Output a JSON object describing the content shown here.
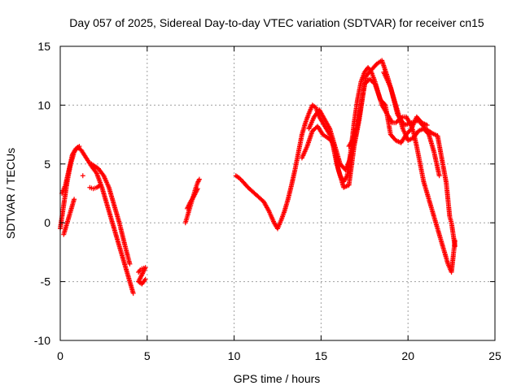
{
  "chart_data": {
    "type": "scatter",
    "title": "Day 057 of 2025, Sidereal Day-to-day VTEC variation (SDTVAR) for receiver cn15",
    "xlabel": "GPS time / hours",
    "ylabel": "SDTVAR / TECUs",
    "xlim": [
      0,
      25
    ],
    "ylim": [
      -10,
      15
    ],
    "xticks": [
      0,
      5,
      10,
      15,
      20,
      25
    ],
    "yticks": [
      -10,
      -5,
      0,
      5,
      10,
      15
    ],
    "grid": true,
    "marker": "+",
    "color": "#ff0000",
    "segments": [
      {
        "name": "segment-1",
        "x": [
          0.0,
          0.2,
          0.4,
          0.6,
          0.8,
          1.0,
          1.2,
          1.5,
          1.8,
          2.1,
          2.4,
          2.7,
          3.0,
          3.3,
          3.6,
          3.9,
          4.2
        ],
        "y": [
          -0.5,
          1.5,
          3.5,
          5.0,
          6.0,
          6.4,
          6.2,
          5.5,
          4.8,
          4.2,
          3.0,
          1.5,
          0.0,
          -1.5,
          -3.0,
          -4.5,
          -6.0
        ]
      },
      {
        "name": "segment-1-upper",
        "x": [
          0.1,
          0.3,
          0.5,
          0.7,
          0.9,
          1.1
        ],
        "y": [
          2.5,
          3.2,
          4.5,
          5.8,
          6.3,
          6.5
        ]
      },
      {
        "name": "segment-1-lower",
        "x": [
          0.2,
          0.4,
          0.6,
          0.8
        ],
        "y": [
          -1.0,
          0.0,
          1.0,
          2.0
        ]
      },
      {
        "name": "segment-1-band2",
        "x": [
          1.8,
          2.0,
          2.2,
          2.5,
          2.8,
          3.1,
          3.4,
          3.7,
          4.0
        ],
        "y": [
          5.0,
          4.8,
          4.6,
          4.0,
          3.0,
          1.5,
          0.0,
          -1.8,
          -3.5
        ]
      },
      {
        "name": "segment-1-band3",
        "x": [
          1.7,
          1.9,
          2.1,
          2.3
        ],
        "y": [
          3.0,
          2.9,
          3.0,
          3.2
        ]
      },
      {
        "name": "segment-1-tail",
        "x": [
          4.5,
          4.6,
          4.7,
          4.9,
          4.5,
          4.7,
          4.9,
          1.3
        ],
        "y": [
          -4.2,
          -4.0,
          -3.9,
          -3.8,
          -5.0,
          -5.2,
          -4.8,
          4.0
        ]
      },
      {
        "name": "segment-2",
        "x": [
          7.2,
          7.3,
          7.4,
          7.5,
          7.6,
          7.7,
          7.8,
          7.9,
          8.0
        ],
        "y": [
          0.0,
          0.5,
          1.0,
          1.5,
          2.0,
          2.5,
          3.0,
          3.4,
          3.7
        ]
      },
      {
        "name": "segment-2-band",
        "x": [
          7.3,
          7.5,
          7.7,
          7.9
        ],
        "y": [
          1.2,
          1.8,
          2.3,
          2.9
        ]
      },
      {
        "name": "segment-3",
        "x": [
          10.1,
          10.3,
          10.5,
          10.8,
          11.1,
          11.4,
          11.7,
          12.0,
          12.3,
          12.5,
          12.7,
          12.9,
          13.1,
          13.3,
          13.5,
          13.7,
          13.9,
          14.1,
          14.3,
          14.5,
          14.7,
          14.9,
          15.1,
          15.3,
          15.5,
          15.7,
          15.9,
          16.1,
          16.3,
          16.5,
          16.7,
          16.9,
          17.1,
          17.3,
          17.5,
          17.7,
          17.9,
          18.1,
          18.3,
          18.5,
          18.7,
          18.9,
          19.1,
          19.3,
          19.5,
          19.7,
          19.9,
          20.1,
          20.3,
          20.5,
          20.7,
          20.9,
          21.1,
          21.3,
          21.5,
          21.7,
          21.9,
          22.1,
          22.3,
          22.5,
          22.7
        ],
        "y": [
          4.0,
          3.8,
          3.5,
          3.0,
          2.6,
          2.2,
          1.8,
          1.0,
          0.0,
          -0.5,
          0.2,
          1.0,
          2.0,
          3.2,
          4.5,
          6.0,
          7.5,
          8.5,
          9.3,
          10.0,
          9.8,
          9.0,
          8.5,
          8.0,
          7.5,
          6.5,
          5.0,
          4.0,
          3.5,
          4.0,
          6.0,
          8.5,
          10.5,
          12.0,
          12.8,
          13.2,
          12.8,
          12.0,
          11.0,
          10.0,
          9.5,
          9.0,
          8.5,
          8.5,
          8.8,
          9.0,
          9.0,
          8.5,
          7.8,
          6.5,
          5.0,
          3.5,
          2.5,
          1.5,
          0.5,
          -0.5,
          -1.5,
          -2.5,
          -3.5,
          -4.2,
          -1.5
        ]
      },
      {
        "name": "segment-3-band2",
        "x": [
          14.3,
          14.6,
          14.9,
          15.2,
          15.5,
          15.8,
          16.1,
          16.4,
          16.7,
          17.0,
          17.3,
          17.6,
          17.9,
          18.2,
          18.5,
          18.8,
          19.1,
          19.4,
          19.7,
          20.0,
          20.3,
          20.6,
          20.9,
          21.2,
          21.5,
          21.8
        ],
        "y": [
          8.0,
          9.0,
          9.6,
          8.8,
          8.0,
          6.5,
          5.0,
          4.5,
          5.5,
          7.5,
          10.0,
          12.5,
          13.0,
          13.5,
          13.8,
          12.5,
          11.0,
          9.5,
          8.0,
          7.0,
          7.2,
          7.8,
          8.0,
          7.5,
          6.0,
          4.0
        ]
      },
      {
        "name": "segment-3-band3",
        "x": [
          13.9,
          14.2,
          14.5,
          14.8,
          15.1,
          15.4,
          15.7,
          16.0,
          16.3,
          16.6,
          16.9,
          17.2,
          17.5,
          17.8,
          18.1,
          18.4,
          18.7,
          19.0,
          19.3,
          19.6,
          19.9,
          20.2,
          20.5,
          20.8,
          21.1
        ],
        "y": [
          5.5,
          6.5,
          7.8,
          8.2,
          7.5,
          7.2,
          6.8,
          4.5,
          3.0,
          3.2,
          6.5,
          8.8,
          11.8,
          12.2,
          11.8,
          10.5,
          10.0,
          7.5,
          7.0,
          6.8,
          7.5,
          8.0,
          9.0,
          8.5,
          8.3
        ]
      },
      {
        "name": "segment-3-extra",
        "x": [
          16.6,
          16.8,
          17.0,
          18.6,
          19.0,
          19.4,
          19.8,
          20.2,
          20.6,
          21.0,
          21.4,
          21.7,
          22.2,
          22.4,
          22.5,
          22.6,
          22.7
        ],
        "y": [
          6.5,
          7.0,
          8.0,
          12.8,
          11.5,
          9.2,
          8.3,
          8.5,
          8.7,
          8.0,
          7.6,
          7.4,
          3.4,
          0.5,
          0.0,
          -1.0,
          -2.0
        ]
      }
    ]
  }
}
